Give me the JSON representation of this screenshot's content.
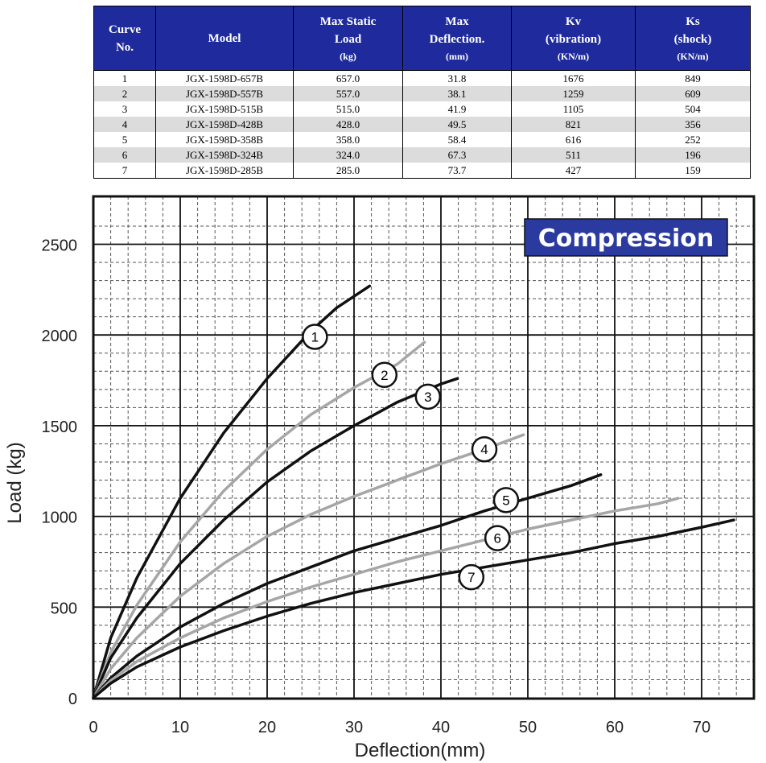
{
  "table": {
    "headers": [
      {
        "label": "Curve\nNo.",
        "unit": ""
      },
      {
        "label": "Model",
        "unit": ""
      },
      {
        "label": "Max Static\nLoad",
        "unit": "(kg)"
      },
      {
        "label": "Max\nDeflection.",
        "unit": "(mm)"
      },
      {
        "label": "Kv\n(vibration)",
        "unit": "(KN/m)"
      },
      {
        "label": "Ks\n(shock)",
        "unit": "(KN/m)"
      }
    ],
    "rows": [
      [
        "1",
        "JGX-1598D-657B",
        "657.0",
        "31.8",
        "1676",
        "849"
      ],
      [
        "2",
        "JGX-1598D-557B",
        "557.0",
        "38.1",
        "1259",
        "609"
      ],
      [
        "3",
        "JGX-1598D-515B",
        "515.0",
        "41.9",
        "1105",
        "504"
      ],
      [
        "4",
        "JGX-1598D-428B",
        "428.0",
        "49.5",
        "821",
        "356"
      ],
      [
        "5",
        "JGX-1598D-358B",
        "358.0",
        "58.4",
        "616",
        "252"
      ],
      [
        "6",
        "JGX-1598D-324B",
        "324.0",
        "67.3",
        "511",
        "196"
      ],
      [
        "7",
        "JGX-1598D-285B",
        "285.0",
        "73.7",
        "427",
        "159"
      ]
    ]
  },
  "chart_data": {
    "type": "line",
    "title": "",
    "annotation": "Compression",
    "xlabel": "Deflection(mm)",
    "ylabel": "Load (kg)",
    "xlim": [
      0,
      76
    ],
    "ylim": [
      0,
      2700
    ],
    "xticks": [
      0,
      10,
      20,
      30,
      40,
      50,
      60,
      70
    ],
    "yticks": [
      0,
      500,
      1000,
      1500,
      2000,
      2500
    ],
    "grid": true,
    "legend": "none",
    "series": [
      {
        "name": "1",
        "color": "#111111",
        "label_at": [
          25.5,
          1990
        ],
        "points": [
          [
            0,
            0
          ],
          [
            2,
            330
          ],
          [
            5,
            660
          ],
          [
            10,
            1100
          ],
          [
            15,
            1460
          ],
          [
            20,
            1760
          ],
          [
            25,
            2020
          ],
          [
            28,
            2150
          ],
          [
            31.8,
            2270
          ]
        ]
      },
      {
        "name": "2",
        "color": "#a6a6a6",
        "label_at": [
          33.5,
          1780
        ],
        "points": [
          [
            0,
            0
          ],
          [
            2,
            250
          ],
          [
            5,
            510
          ],
          [
            10,
            860
          ],
          [
            15,
            1140
          ],
          [
            20,
            1370
          ],
          [
            25,
            1560
          ],
          [
            30,
            1710
          ],
          [
            35,
            1840
          ],
          [
            38.1,
            1960
          ]
        ]
      },
      {
        "name": "3",
        "color": "#111111",
        "label_at": [
          38.5,
          1660
        ],
        "points": [
          [
            0,
            0
          ],
          [
            2,
            220
          ],
          [
            5,
            440
          ],
          [
            10,
            740
          ],
          [
            15,
            980
          ],
          [
            20,
            1190
          ],
          [
            25,
            1360
          ],
          [
            30,
            1500
          ],
          [
            35,
            1630
          ],
          [
            40,
            1730
          ],
          [
            41.9,
            1760
          ]
        ]
      },
      {
        "name": "4",
        "color": "#a6a6a6",
        "label_at": [
          45,
          1370
        ],
        "points": [
          [
            0,
            0
          ],
          [
            2,
            160
          ],
          [
            5,
            330
          ],
          [
            10,
            560
          ],
          [
            15,
            740
          ],
          [
            20,
            890
          ],
          [
            25,
            1010
          ],
          [
            30,
            1110
          ],
          [
            35,
            1200
          ],
          [
            40,
            1290
          ],
          [
            45,
            1370
          ],
          [
            49.5,
            1450
          ]
        ]
      },
      {
        "name": "5",
        "color": "#111111",
        "label_at": [
          47.5,
          1090
        ],
        "points": [
          [
            0,
            0
          ],
          [
            2,
            110
          ],
          [
            5,
            230
          ],
          [
            10,
            390
          ],
          [
            15,
            520
          ],
          [
            20,
            630
          ],
          [
            25,
            720
          ],
          [
            30,
            810
          ],
          [
            35,
            880
          ],
          [
            40,
            950
          ],
          [
            45,
            1030
          ],
          [
            50,
            1100
          ],
          [
            55,
            1170
          ],
          [
            58.4,
            1230
          ]
        ]
      },
      {
        "name": "6",
        "color": "#a6a6a6",
        "label_at": [
          46.5,
          880
        ],
        "points": [
          [
            0,
            0
          ],
          [
            2,
            95
          ],
          [
            5,
            200
          ],
          [
            10,
            330
          ],
          [
            15,
            440
          ],
          [
            20,
            530
          ],
          [
            25,
            610
          ],
          [
            30,
            680
          ],
          [
            35,
            750
          ],
          [
            40,
            810
          ],
          [
            45,
            870
          ],
          [
            50,
            930
          ],
          [
            55,
            980
          ],
          [
            60,
            1030
          ],
          [
            65,
            1070
          ],
          [
            67.3,
            1100
          ]
        ]
      },
      {
        "name": "7",
        "color": "#111111",
        "label_at": [
          43.5,
          665
        ],
        "points": [
          [
            0,
            0
          ],
          [
            2,
            80
          ],
          [
            5,
            170
          ],
          [
            10,
            280
          ],
          [
            15,
            370
          ],
          [
            20,
            450
          ],
          [
            25,
            520
          ],
          [
            30,
            580
          ],
          [
            35,
            630
          ],
          [
            40,
            680
          ],
          [
            45,
            720
          ],
          [
            50,
            760
          ],
          [
            55,
            800
          ],
          [
            60,
            850
          ],
          [
            65,
            890
          ],
          [
            70,
            940
          ],
          [
            73.7,
            980
          ]
        ]
      }
    ]
  },
  "colors": {
    "header_bg": "#1f2b9c",
    "compression_bg": "#2b3a9f",
    "row_alt": "#dcdcdc"
  }
}
